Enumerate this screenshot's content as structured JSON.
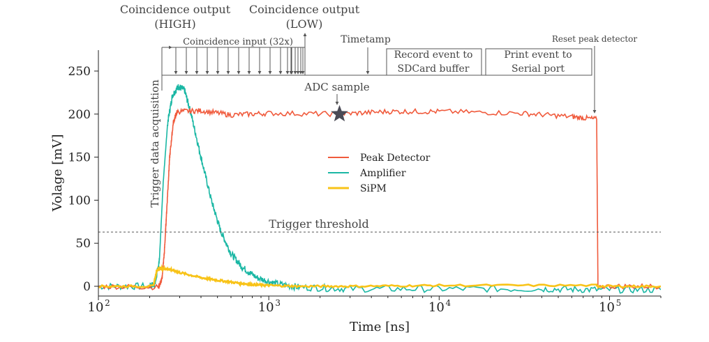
{
  "chart_data": {
    "type": "line",
    "xscale": "log",
    "xlabel": "Time [ns]",
    "ylabel": "Volage [mV]",
    "xlim": [
      100,
      200000
    ],
    "ylim": [
      -10,
      270
    ],
    "x_ticks": [
      {
        "value": 100,
        "base": "10",
        "exp": "2"
      },
      {
        "value": 1000,
        "base": "10",
        "exp": "3"
      },
      {
        "value": 10000,
        "base": "10",
        "exp": "4"
      },
      {
        "value": 100000,
        "base": "10",
        "exp": "5"
      }
    ],
    "y_ticks": [
      0,
      50,
      100,
      150,
      200,
      250
    ],
    "threshold": {
      "value": 63,
      "label": "Trigger threshold"
    },
    "series": [
      {
        "name": "Peak Detector",
        "color": "#f05a3c",
        "points": [
          [
            100,
            0
          ],
          [
            225,
            -1
          ],
          [
            236,
            8
          ],
          [
            244,
            40
          ],
          [
            252,
            90
          ],
          [
            262,
            150
          ],
          [
            275,
            190
          ],
          [
            290,
            203
          ],
          [
            400,
            204
          ],
          [
            600,
            199
          ],
          [
            1000,
            201
          ],
          [
            2600,
            200
          ],
          [
            5000,
            203
          ],
          [
            10000,
            203
          ],
          [
            30000,
            201
          ],
          [
            60000,
            197
          ],
          [
            84000,
            194
          ],
          [
            85500,
            0
          ],
          [
            200000,
            0
          ]
        ]
      },
      {
        "name": "Amplifier",
        "color": "#1ab7a4",
        "points": [
          [
            100,
            0
          ],
          [
            200,
            0
          ],
          [
            215,
            3
          ],
          [
            228,
            30
          ],
          [
            240,
            120
          ],
          [
            255,
            190
          ],
          [
            272,
            222
          ],
          [
            295,
            232
          ],
          [
            320,
            228
          ],
          [
            350,
            200
          ],
          [
            400,
            150
          ],
          [
            460,
            100
          ],
          [
            520,
            65
          ],
          [
            600,
            38
          ],
          [
            700,
            22
          ],
          [
            850,
            10
          ],
          [
            1100,
            3
          ],
          [
            1500,
            -1
          ],
          [
            3000,
            -3
          ],
          [
            10000,
            -3
          ],
          [
            40000,
            -3
          ],
          [
            84000,
            -4
          ],
          [
            200000,
            -4
          ]
        ]
      },
      {
        "name": "SiPM",
        "color": "#f8c318",
        "points": [
          [
            100,
            0
          ],
          [
            210,
            0
          ],
          [
            220,
            18
          ],
          [
            230,
            21
          ],
          [
            260,
            20
          ],
          [
            300,
            16
          ],
          [
            400,
            10
          ],
          [
            500,
            7
          ],
          [
            650,
            4
          ],
          [
            800,
            2
          ],
          [
            1000,
            1
          ],
          [
            1500,
            0
          ],
          [
            3000,
            0
          ],
          [
            10000,
            1
          ],
          [
            84000,
            1
          ],
          [
            86000,
            0
          ],
          [
            200000,
            0
          ]
        ]
      }
    ],
    "legend": [
      {
        "label": "Peak Detector",
        "color": "#f05a3c"
      },
      {
        "label": "Amplifier",
        "color": "#1ab7a4"
      },
      {
        "label": "SiPM",
        "color": "#f8c318"
      }
    ],
    "legend_placement": "center",
    "annotations": {
      "coinc_high_line1": "Coincidence output",
      "coinc_high_line2": "(HIGH)",
      "coinc_low_line1": "Coincidence output",
      "coinc_low_line2": "(LOW)",
      "coinc_input": "Coincidence input (32x)",
      "timestamp": "Timetamp",
      "record_line1": "Record event to",
      "record_line2": "SDCard buffer",
      "print_line1": "Print event to",
      "print_line2": "Serial port",
      "reset": "Reset peak detector",
      "adc": "ADC sample",
      "trigger_acq": "Trigger data  acquisition"
    },
    "adc_sample": {
      "x": 2600,
      "y": 200
    }
  }
}
